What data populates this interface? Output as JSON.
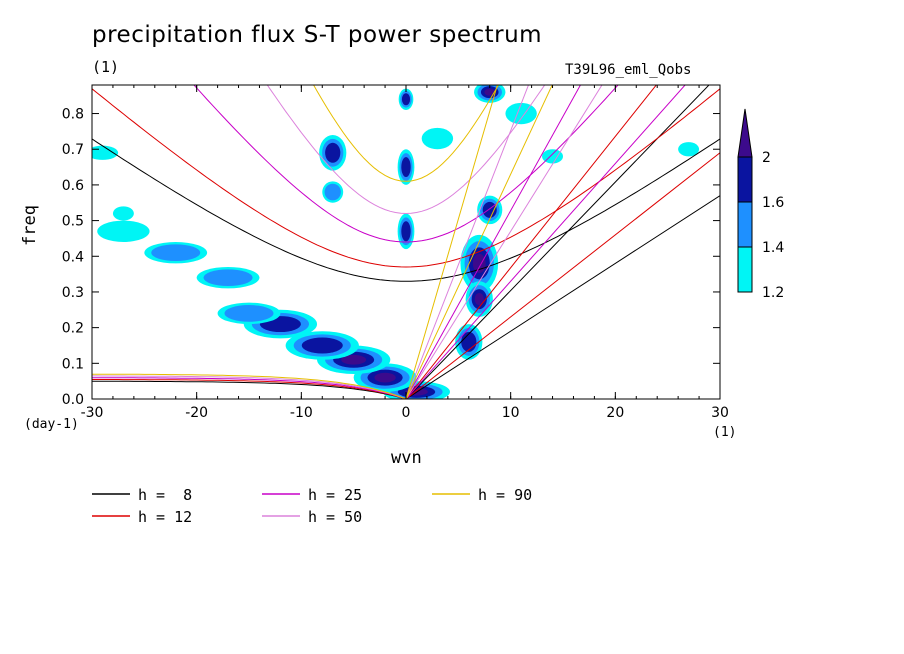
{
  "chart_data": {
    "type": "heatmap",
    "title": "precipitation flux S-T power spectrum",
    "subtitle": "(1)",
    "run_name": "T39L96_eml_Qobs",
    "xlabel": "wvn",
    "ylabel": "freq",
    "x_unit_label": "(1)",
    "y_unit_label": "(day-1)",
    "xlim": [
      -30,
      30
    ],
    "ylim": [
      0,
      0.88
    ],
    "x_ticks": [
      -30,
      -20,
      -10,
      0,
      10,
      20,
      30
    ],
    "x_tick_labels": [
      "-30",
      "-20",
      "-10",
      "0",
      "10",
      "20",
      "30"
    ],
    "y_ticks": [
      0,
      0.1,
      0.2,
      0.3,
      0.4,
      0.5,
      0.6,
      0.7,
      0.8
    ],
    "y_tick_labels": [
      "0.0",
      "0.1",
      "0.2",
      "0.3",
      "0.4",
      "0.5",
      "0.6",
      "0.7",
      "0.8"
    ],
    "colorbar": {
      "levels": [
        1.2,
        1.4,
        1.6,
        2
      ],
      "level_labels": [
        "1.2",
        "1.4",
        "1.6",
        "2"
      ],
      "colors": [
        "#00f5f5",
        "#1e90ff",
        "#0a14a0",
        "#3c0a8c"
      ]
    },
    "contour_regions": [
      {
        "x": 1,
        "y": 0.02,
        "rx": 3.2,
        "ry": 0.03,
        "level": 3
      },
      {
        "x": -2,
        "y": 0.06,
        "rx": 3,
        "ry": 0.04,
        "level": 3
      },
      {
        "x": -5,
        "y": 0.11,
        "rx": 3.5,
        "ry": 0.04,
        "level": 3
      },
      {
        "x": -8,
        "y": 0.15,
        "rx": 3.5,
        "ry": 0.04,
        "level": 2
      },
      {
        "x": -12,
        "y": 0.21,
        "rx": 3.5,
        "ry": 0.04,
        "level": 2
      },
      {
        "x": -15,
        "y": 0.24,
        "rx": 3,
        "ry": 0.03,
        "level": 1
      },
      {
        "x": -17,
        "y": 0.34,
        "rx": 3,
        "ry": 0.03,
        "level": 1
      },
      {
        "x": -22,
        "y": 0.41,
        "rx": 3,
        "ry": 0.03,
        "level": 1
      },
      {
        "x": -27,
        "y": 0.47,
        "rx": 2.5,
        "ry": 0.03,
        "level": 0
      },
      {
        "x": 7,
        "y": 0.38,
        "rx": 1.8,
        "ry": 0.08,
        "level": 3
      },
      {
        "x": 7,
        "y": 0.28,
        "rx": 1.3,
        "ry": 0.05,
        "level": 3
      },
      {
        "x": 6,
        "y": 0.16,
        "rx": 1.3,
        "ry": 0.05,
        "level": 2
      },
      {
        "x": 8,
        "y": 0.53,
        "rx": 1.2,
        "ry": 0.04,
        "level": 2
      },
      {
        "x": 8,
        "y": 0.86,
        "rx": 1.5,
        "ry": 0.03,
        "level": 3
      },
      {
        "x": 0,
        "y": 0.47,
        "rx": 0.8,
        "ry": 0.05,
        "level": 2
      },
      {
        "x": 0,
        "y": 0.65,
        "rx": 0.8,
        "ry": 0.05,
        "level": 2
      },
      {
        "x": 0,
        "y": 0.84,
        "rx": 0.7,
        "ry": 0.03,
        "level": 2
      },
      {
        "x": -7,
        "y": 0.69,
        "rx": 1.3,
        "ry": 0.05,
        "level": 2
      },
      {
        "x": -7,
        "y": 0.58,
        "rx": 1,
        "ry": 0.03,
        "level": 1
      },
      {
        "x": 3,
        "y": 0.73,
        "rx": 1.5,
        "ry": 0.03,
        "level": 0
      },
      {
        "x": 11,
        "y": 0.8,
        "rx": 1.5,
        "ry": 0.03,
        "level": 0
      },
      {
        "x": -29,
        "y": 0.69,
        "rx": 1.5,
        "ry": 0.02,
        "level": 0
      },
      {
        "x": -27,
        "y": 0.52,
        "rx": 1,
        "ry": 0.02,
        "level": 0
      },
      {
        "x": 14,
        "y": 0.68,
        "rx": 1,
        "ry": 0.02,
        "level": 0
      },
      {
        "x": 27,
        "y": 0.7,
        "rx": 1,
        "ry": 0.02,
        "level": 0
      }
    ],
    "legend": {
      "entries": [
        {
          "label": "h =  8",
          "color": "#000000"
        },
        {
          "label": "h = 12",
          "color": "#dd0000"
        },
        {
          "label": "h = 25",
          "color": "#c800c8"
        },
        {
          "label": "h = 50",
          "color": "#dc82dc"
        },
        {
          "label": "h = 90",
          "color": "#e6be00"
        }
      ]
    },
    "dispersion_curves": [
      {
        "h": 8,
        "color": "#000000",
        "symmetric_min": 0.33,
        "kelvin_slope": 0.019,
        "mrg_left": 0.05
      },
      {
        "h": 12,
        "color": "#dd0000",
        "symmetric_min": 0.37,
        "kelvin_slope": 0.023,
        "mrg_left": 0.055
      },
      {
        "h": 25,
        "color": "#c800c8",
        "symmetric_min": 0.44,
        "kelvin_slope": 0.033,
        "mrg_left": 0.06
      },
      {
        "h": 50,
        "color": "#dc82dc",
        "symmetric_min": 0.52,
        "kelvin_slope": 0.047,
        "mrg_left": 0.065
      },
      {
        "h": 90,
        "color": "#e6be00",
        "symmetric_min": 0.61,
        "kelvin_slope": 0.063,
        "mrg_left": 0.07
      }
    ]
  }
}
